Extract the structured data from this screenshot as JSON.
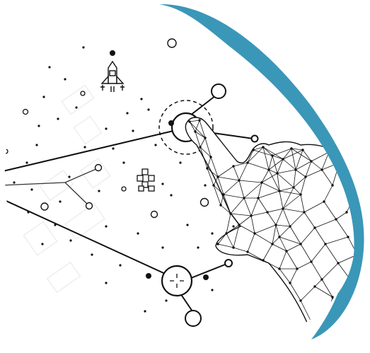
{
  "illustration": {
    "accent_color": "#3a97b8",
    "line_color": "#111111",
    "icons": [
      "rocket-icon",
      "target-node-icon",
      "crosshair-node-icon",
      "block-cluster-icon",
      "polygonal-hand-icon"
    ]
  }
}
